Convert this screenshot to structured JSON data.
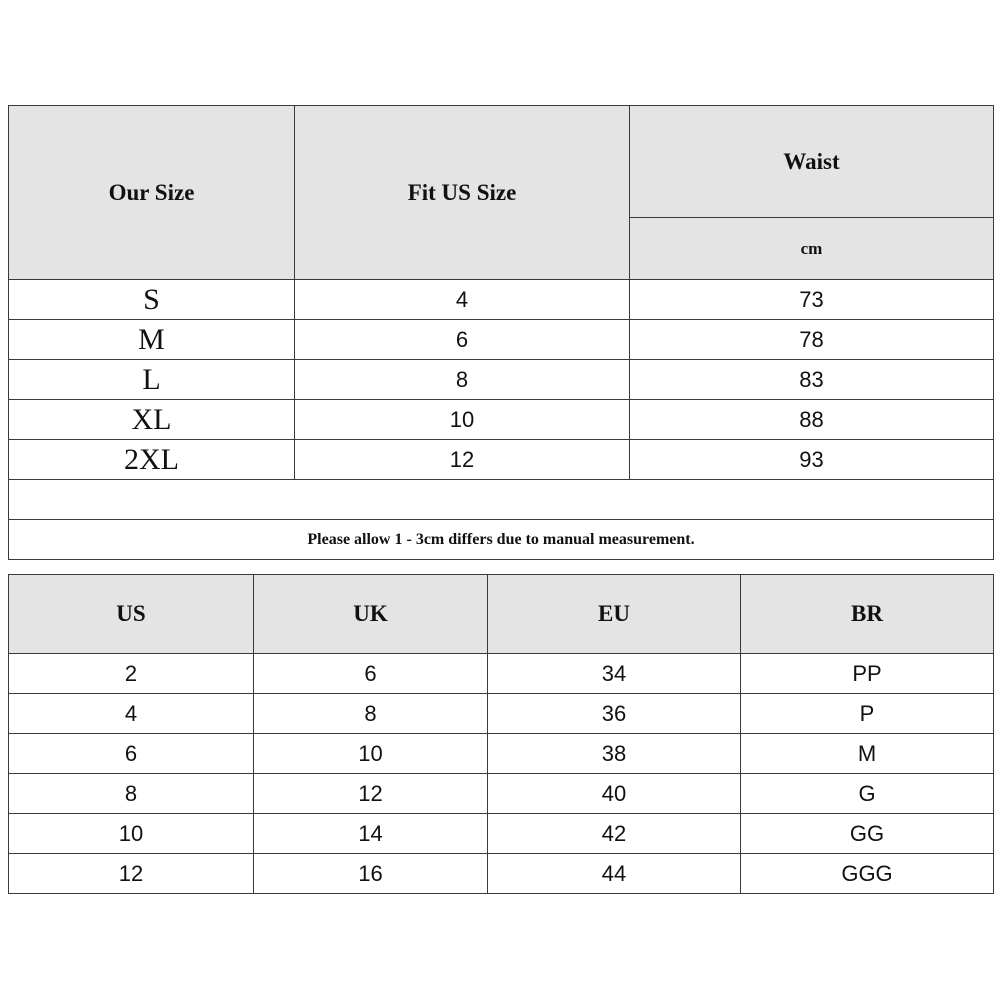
{
  "size_table": {
    "headers": {
      "our_size": "Our Size",
      "fit_us_size": "Fit US Size",
      "waist": "Waist",
      "waist_unit": "cm"
    },
    "rows": [
      {
        "our_size": "S",
        "fit_us": "4",
        "waist": "73"
      },
      {
        "our_size": "M",
        "fit_us": "6",
        "waist": "78"
      },
      {
        "our_size": "L",
        "fit_us": "8",
        "waist": "83"
      },
      {
        "our_size": "XL",
        "fit_us": "10",
        "waist": "88"
      },
      {
        "our_size": "2XL",
        "fit_us": "12",
        "waist": "93"
      }
    ],
    "note": "Please allow 1 - 3cm differs due to manual measurement."
  },
  "conversion_table": {
    "headers": [
      "US",
      "UK",
      "EU",
      "BR"
    ],
    "rows": [
      [
        "2",
        "6",
        "34",
        "PP"
      ],
      [
        "4",
        "8",
        "36",
        "P"
      ],
      [
        "6",
        "10",
        "38",
        "M"
      ],
      [
        "8",
        "12",
        "40",
        "G"
      ],
      [
        "10",
        "14",
        "42",
        "GG"
      ],
      [
        "12",
        "16",
        "44",
        "GGG"
      ]
    ]
  },
  "colors": {
    "header_bg": "#e4e4e4",
    "border": "#3a3a3a"
  }
}
